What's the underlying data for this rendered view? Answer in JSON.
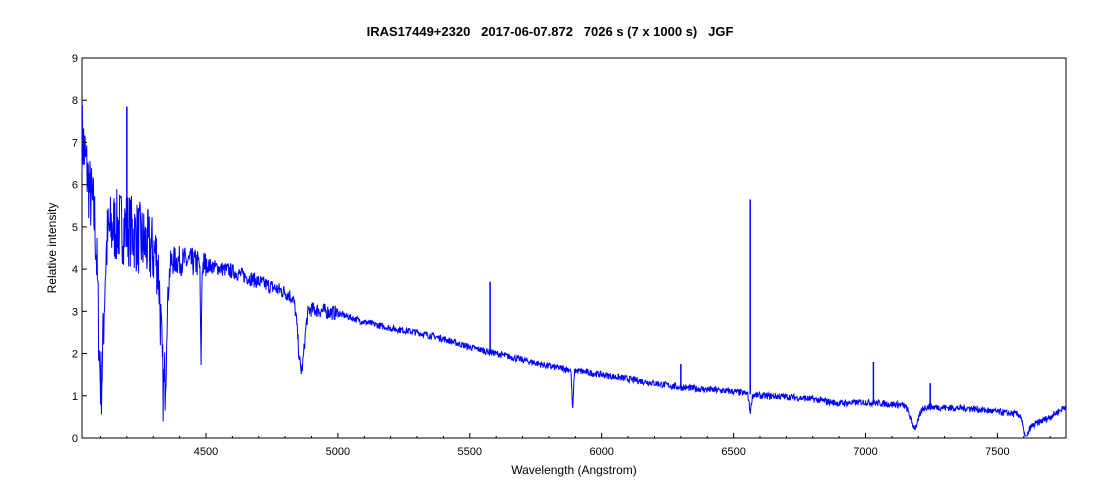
{
  "chart_data": {
    "type": "line",
    "title": "IRAS17449+2320   2017-06-07.872   7026 s (7 x 1000 s)   JGF",
    "xlabel": "Wavelength (Angstrom)",
    "ylabel": "Relative intensity",
    "xlim": [
      4030,
      7760
    ],
    "ylim": [
      0,
      9
    ],
    "x_ticks": [
      4500,
      5000,
      5500,
      6000,
      6500,
      7000,
      7500
    ],
    "y_ticks": [
      0,
      1,
      2,
      3,
      4,
      5,
      6,
      7,
      8,
      9
    ],
    "grid": false,
    "legend": "none",
    "series": [
      {
        "color": "#0000ff",
        "continuum": [
          [
            4030,
            7.2
          ],
          [
            4060,
            5.8
          ],
          [
            4100,
            4.7
          ],
          [
            4150,
            5.0
          ],
          [
            4200,
            5.0
          ],
          [
            4250,
            4.7
          ],
          [
            4300,
            4.4
          ],
          [
            4350,
            4.2
          ],
          [
            4400,
            4.2
          ],
          [
            4500,
            4.1
          ],
          [
            4600,
            3.95
          ],
          [
            4700,
            3.7
          ],
          [
            4800,
            3.45
          ],
          [
            4900,
            3.05
          ],
          [
            5000,
            2.95
          ],
          [
            5100,
            2.75
          ],
          [
            5200,
            2.6
          ],
          [
            5300,
            2.5
          ],
          [
            5400,
            2.35
          ],
          [
            5500,
            2.15
          ],
          [
            5600,
            2.0
          ],
          [
            5700,
            1.85
          ],
          [
            5800,
            1.7
          ],
          [
            5900,
            1.6
          ],
          [
            6000,
            1.5
          ],
          [
            6100,
            1.4
          ],
          [
            6200,
            1.3
          ],
          [
            6300,
            1.2
          ],
          [
            6400,
            1.15
          ],
          [
            6500,
            1.1
          ],
          [
            6600,
            1.0
          ],
          [
            6700,
            0.98
          ],
          [
            6800,
            0.92
          ],
          [
            6870,
            0.85
          ],
          [
            6900,
            0.82
          ],
          [
            7000,
            0.85
          ],
          [
            7100,
            0.8
          ],
          [
            7200,
            0.75
          ],
          [
            7300,
            0.72
          ],
          [
            7400,
            0.7
          ],
          [
            7500,
            0.62
          ],
          [
            7590,
            0.55
          ],
          [
            7610,
            0.2
          ],
          [
            7650,
            0.35
          ],
          [
            7700,
            0.5
          ],
          [
            7760,
            0.75
          ]
        ],
        "absorption": [
          {
            "center": 4102,
            "depth": 3.4,
            "width": 10
          },
          {
            "center": 4340,
            "depth": 3.1,
            "width": 10
          },
          {
            "center": 4481,
            "depth": 2.3,
            "width": 2
          },
          {
            "center": 4861,
            "depth": 1.6,
            "width": 12
          },
          {
            "center": 5890,
            "depth": 0.9,
            "width": 3
          },
          {
            "center": 6563,
            "depth": 0.4,
            "width": 4
          },
          {
            "center": 7186,
            "depth": 0.5,
            "width": 15
          },
          {
            "center": 7605,
            "depth": 0.3,
            "width": 8
          }
        ],
        "emission": [
          {
            "center": 4200,
            "peak": 7.85
          },
          {
            "center": 5577,
            "peak": 3.7
          },
          {
            "center": 6300,
            "peak": 1.75
          },
          {
            "center": 6563,
            "peak": 5.65
          },
          {
            "center": 7030,
            "peak": 1.8
          },
          {
            "center": 7245,
            "peak": 1.3
          }
        ]
      }
    ]
  }
}
